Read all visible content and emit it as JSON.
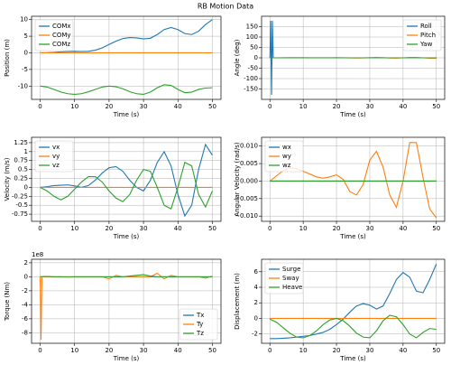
{
  "title": "RB Motion Data",
  "chart_data": [
    {
      "type": "line",
      "xlabel": "Time (s)",
      "ylabel": "Position (m)",
      "grid": true,
      "legend": "upper left",
      "xlim": [
        -2.5,
        52.5
      ],
      "xticks": [
        0,
        10,
        20,
        30,
        40,
        50
      ],
      "ylim": [
        -14,
        11
      ],
      "yticks": [
        -10,
        -5,
        0,
        5,
        10
      ],
      "x": [
        0,
        2,
        4,
        6,
        8,
        10,
        12,
        14,
        16,
        18,
        20,
        22,
        24,
        26,
        28,
        30,
        32,
        34,
        36,
        38,
        40,
        42,
        44,
        46,
        48,
        50
      ],
      "series": [
        {
          "name": "COMx",
          "color": "#1f77b4",
          "values": [
            0,
            0.05,
            0.15,
            0.3,
            0.4,
            0.45,
            0.4,
            0.45,
            0.8,
            1.5,
            2.5,
            3.5,
            4.3,
            4.6,
            4.5,
            4.2,
            4.4,
            5.5,
            7,
            7.6,
            7,
            5.8,
            5.5,
            6.5,
            8.5,
            10
          ]
        },
        {
          "name": "COMy",
          "color": "#ff7f0e",
          "values": [
            0,
            0,
            0,
            0,
            0,
            0,
            0,
            0,
            0,
            0,
            0,
            0,
            0,
            0,
            0,
            0,
            0,
            0,
            0,
            0,
            0,
            0,
            0,
            0,
            0,
            0
          ]
        },
        {
          "name": "COMz",
          "color": "#2ca02c",
          "values": [
            -10,
            -10.3,
            -11,
            -11.8,
            -12.3,
            -12.5,
            -12.3,
            -11.7,
            -11,
            -10.3,
            -10,
            -10.2,
            -10.8,
            -11.7,
            -12.3,
            -12.5,
            -11.8,
            -10.5,
            -9.6,
            -9.8,
            -11,
            -12,
            -11.8,
            -11,
            -10.6,
            -10.5
          ]
        }
      ]
    },
    {
      "type": "line",
      "xlabel": "Time (s)",
      "ylabel": "Angle (deg)",
      "grid": true,
      "legend": "upper right",
      "xlim": [
        -2.5,
        52.5
      ],
      "xticks": [
        0,
        10,
        20,
        30,
        40,
        50
      ],
      "ylim": [
        -200,
        200
      ],
      "yticks": [
        -150,
        -100,
        -50,
        0,
        50,
        100,
        150
      ],
      "x": [
        0,
        0.25,
        0.5,
        0.75,
        1,
        2,
        4,
        6,
        8,
        10,
        12,
        14,
        16,
        18,
        20,
        22,
        24,
        26,
        28,
        30,
        32,
        34,
        36,
        38,
        40,
        42,
        44,
        46,
        48,
        50
      ],
      "series": [
        {
          "name": "Roll",
          "color": "#1f77b4",
          "values": [
            0,
            178,
            -178,
            178,
            0,
            0,
            0,
            0,
            0,
            0,
            0,
            0,
            0,
            0,
            0,
            0,
            0,
            0,
            0,
            0,
            0,
            0,
            0,
            0,
            0,
            0,
            0,
            0,
            0,
            0
          ]
        },
        {
          "name": "Pitch",
          "color": "#ff7f0e",
          "values": [
            0,
            0,
            0,
            0,
            0,
            0,
            0.5,
            1,
            1,
            0.8,
            0.5,
            0.3,
            0.3,
            0.5,
            0.6,
            0.2,
            -0.5,
            -0.8,
            -0.2,
            1,
            1.8,
            1,
            -0.8,
            -1.5,
            0,
            2,
            2,
            0,
            -1.8,
            -2
          ]
        },
        {
          "name": "Yaw",
          "color": "#2ca02c",
          "values": [
            0,
            0,
            0,
            0,
            0,
            0,
            0,
            0,
            0,
            0,
            0,
            0,
            0,
            0,
            0,
            0,
            0,
            0,
            0,
            0,
            0,
            0,
            0,
            0,
            0,
            0,
            0,
            0,
            0,
            0
          ]
        }
      ]
    },
    {
      "type": "line",
      "xlabel": "Time (s)",
      "ylabel": "Velocity (m/s)",
      "grid": true,
      "legend": "upper left",
      "xlim": [
        -2.5,
        52.5
      ],
      "xticks": [
        0,
        10,
        20,
        30,
        40,
        50
      ],
      "ylim": [
        -0.95,
        1.4
      ],
      "yticks": [
        -0.75,
        -0.5,
        -0.25,
        0,
        0.25,
        0.5,
        0.75,
        1,
        1.25
      ],
      "x": [
        0,
        2,
        4,
        6,
        8,
        10,
        12,
        14,
        16,
        18,
        20,
        22,
        24,
        26,
        28,
        30,
        32,
        34,
        36,
        38,
        40,
        42,
        44,
        46,
        48,
        50
      ],
      "series": [
        {
          "name": "vx",
          "color": "#1f77b4",
          "values": [
            0,
            0.02,
            0.05,
            0.06,
            0.07,
            0.04,
            0,
            0.05,
            0.2,
            0.4,
            0.55,
            0.58,
            0.45,
            0.2,
            0,
            -0.1,
            0.2,
            0.7,
            1,
            0.6,
            -0.2,
            -0.8,
            -0.5,
            0.5,
            1.2,
            0.9
          ]
        },
        {
          "name": "vy",
          "color": "#ff7f0e",
          "values": [
            0,
            0,
            0,
            0,
            0,
            0,
            0,
            0,
            0,
            0,
            0,
            0,
            0,
            0,
            0,
            0,
            0,
            0,
            0,
            0,
            0,
            0,
            0,
            0,
            0,
            0
          ]
        },
        {
          "name": "vz",
          "color": "#2ca02c",
          "values": [
            0,
            -0.1,
            -0.25,
            -0.35,
            -0.25,
            -0.05,
            0.15,
            0.3,
            0.3,
            0.15,
            -0.1,
            -0.3,
            -0.4,
            -0.2,
            0.2,
            0.5,
            0.45,
            0,
            -0.5,
            -0.6,
            0,
            0.7,
            0.6,
            -0.2,
            -0.55,
            -0.1
          ]
        }
      ]
    },
    {
      "type": "line",
      "xlabel": "Time (s)",
      "ylabel": "Angular Velocity (rad/s)",
      "grid": true,
      "legend": "upper left",
      "xlim": [
        -2.5,
        52.5
      ],
      "xticks": [
        0,
        10,
        20,
        30,
        40,
        50
      ],
      "ylim": [
        -0.0115,
        0.0125
      ],
      "yticks": [
        {
          "value": -0.01,
          "label": "−0.010"
        },
        {
          "value": -0.005,
          "label": "−0.005"
        },
        {
          "value": 0,
          "label": "0.000"
        },
        0.005,
        {
          "value": 0.01,
          "label": "0.010"
        }
      ],
      "x": [
        0,
        2,
        4,
        6,
        8,
        10,
        12,
        14,
        16,
        18,
        20,
        22,
        24,
        26,
        28,
        30,
        32,
        34,
        36,
        38,
        40,
        42,
        44,
        46,
        48,
        50
      ],
      "series": [
        {
          "name": "wx",
          "color": "#1f77b4",
          "values": [
            0,
            0,
            0,
            0,
            0,
            0,
            0,
            0,
            0,
            0,
            0,
            0,
            0,
            0,
            0,
            0,
            0,
            0,
            0,
            0,
            0,
            0,
            0,
            0,
            0,
            0
          ]
        },
        {
          "name": "wy",
          "color": "#ff7f0e",
          "values": [
            0,
            0.0015,
            0.003,
            0.0038,
            0.0035,
            0.0028,
            0.002,
            0.0012,
            0.0008,
            0.0012,
            0.0018,
            0.0005,
            -0.003,
            -0.004,
            -0.001,
            0.006,
            0.0085,
            0.004,
            -0.004,
            -0.0075,
            0,
            0.011,
            0.011,
            0.001,
            -0.008,
            -0.0105
          ]
        },
        {
          "name": "wz",
          "color": "#2ca02c",
          "values": [
            0,
            0,
            0,
            0,
            0,
            0,
            0,
            0,
            0,
            0,
            0,
            0,
            0,
            0,
            0,
            0,
            0,
            0,
            0,
            0,
            0,
            0,
            0,
            0,
            0,
            0
          ]
        }
      ]
    },
    {
      "type": "line",
      "xlabel": "Time (s)",
      "ylabel": "Torque (Nm)",
      "offset_label": "1e8",
      "grid": true,
      "legend": "lower right",
      "xlim": [
        -2.5,
        52.5
      ],
      "xticks": [
        0,
        10,
        20,
        30,
        40,
        50
      ],
      "ylim": [
        -9.5,
        2.5
      ],
      "yticks": [
        -8,
        -6,
        -4,
        -2,
        0,
        2
      ],
      "x": [
        0,
        0.25,
        0.5,
        1,
        2,
        4,
        6,
        8,
        10,
        12,
        14,
        16,
        18,
        20,
        22,
        24,
        26,
        28,
        30,
        32,
        34,
        36,
        38,
        40,
        42,
        44,
        46,
        48,
        50
      ],
      "series": [
        {
          "name": "Tx",
          "color": "#1f77b4",
          "values": [
            0,
            0,
            0,
            0,
            0,
            0,
            0,
            0,
            0,
            0,
            0,
            0,
            0,
            0,
            0,
            0,
            0,
            0,
            0,
            0,
            0,
            0,
            0,
            0,
            0,
            0,
            0,
            0,
            0
          ]
        },
        {
          "name": "Ty",
          "color": "#ff7f0e",
          "values": [
            0,
            -9,
            0,
            0,
            0,
            0,
            0,
            0,
            0,
            0,
            0,
            0,
            0,
            -0.3,
            0.2,
            0,
            0,
            0,
            0,
            0,
            0.5,
            -0.3,
            0.2,
            0,
            0,
            0,
            0,
            -0.2,
            0.1
          ]
        },
        {
          "name": "Tz",
          "color": "#2ca02c",
          "values": [
            0,
            0,
            0,
            0.05,
            0.05,
            0,
            0,
            -0.05,
            0,
            0,
            0,
            0,
            0,
            0,
            0,
            0,
            0.1,
            0.2,
            0.3,
            0.1,
            0,
            0,
            0,
            0,
            0,
            0,
            0,
            0,
            0
          ]
        }
      ]
    },
    {
      "type": "line",
      "xlabel": "Time (s)",
      "ylabel": "Displacement (m)",
      "grid": true,
      "legend": "upper left",
      "xlim": [
        -2.5,
        52.5
      ],
      "xticks": [
        0,
        10,
        20,
        30,
        40,
        50
      ],
      "ylim": [
        -3.2,
        7.6
      ],
      "yticks": [
        -2,
        0,
        2,
        4,
        6
      ],
      "x": [
        0,
        2,
        4,
        6,
        8,
        10,
        12,
        14,
        16,
        18,
        20,
        22,
        24,
        26,
        28,
        30,
        32,
        34,
        36,
        38,
        40,
        42,
        44,
        46,
        48,
        50
      ],
      "series": [
        {
          "name": "Surge",
          "color": "#1f77b4",
          "values": [
            -2.6,
            -2.6,
            -2.55,
            -2.5,
            -2.4,
            -2.3,
            -2.2,
            -2,
            -1.8,
            -1.4,
            -0.8,
            -0.1,
            0.8,
            1.6,
            1.9,
            1.7,
            1.2,
            1.6,
            3.2,
            5,
            5.9,
            5.3,
            3.5,
            3.3,
            5,
            7
          ]
        },
        {
          "name": "Sway",
          "color": "#ff7f0e",
          "values": [
            0,
            0,
            0,
            0,
            0,
            0,
            0,
            0,
            0,
            0,
            0,
            0,
            0,
            0,
            0,
            0,
            0,
            0,
            0,
            0,
            0,
            0,
            0,
            0,
            0,
            0
          ]
        },
        {
          "name": "Heave",
          "color": "#2ca02c",
          "values": [
            -0.1,
            -0.5,
            -1.2,
            -1.9,
            -2.4,
            -2.5,
            -2.2,
            -1.6,
            -0.8,
            -0.2,
            0,
            -0.3,
            -1,
            -1.9,
            -2.4,
            -2.5,
            -1.6,
            -0.3,
            0.4,
            0.2,
            -0.8,
            -2,
            -2.5,
            -1.8,
            -1.3,
            -1.4
          ]
        }
      ]
    }
  ]
}
